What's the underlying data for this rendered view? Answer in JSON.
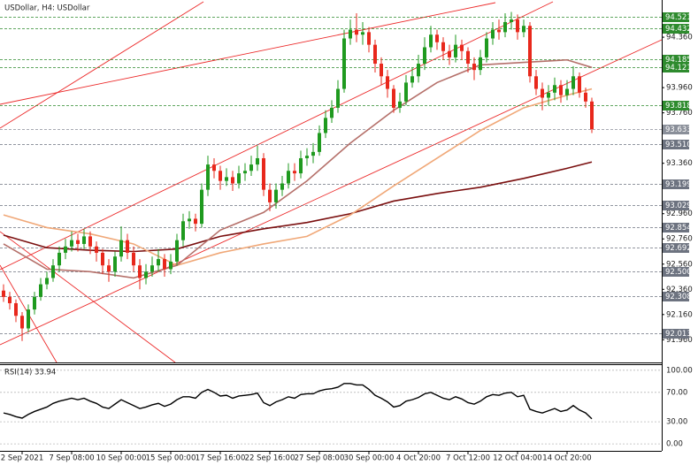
{
  "chart_data": [
    {
      "type": "candlestick",
      "title": "USDollar, H4:  USDollar",
      "categories": [
        null,
        null,
        null,
        "2 Sep 2021",
        null,
        null,
        null,
        null,
        null,
        null,
        null,
        "7 Sep 08:00",
        null,
        null,
        null,
        null,
        null,
        null,
        null,
        "10 Sep 00:00",
        null,
        null,
        null,
        null,
        null,
        null,
        null,
        "15 Sep 00:00",
        null,
        null,
        null,
        null,
        null,
        null,
        null,
        "17 Sep 16:00",
        null,
        null,
        null,
        null,
        null,
        null,
        null,
        "22 Sep 16:00",
        null,
        null,
        null,
        null,
        null,
        null,
        null,
        "27 Sep 08:00",
        null,
        null,
        null,
        null,
        null,
        null,
        null,
        "30 Sep 00:00",
        null,
        null,
        null,
        null,
        null,
        null,
        null,
        "4 Oct 20:00",
        null,
        null,
        null,
        null,
        null,
        null,
        null,
        "7 Oct 12:00",
        null,
        null,
        null,
        null,
        null,
        null,
        null,
        "12 Oct 04:00",
        null,
        null,
        null,
        null,
        null,
        null,
        null,
        "14 Oct 20:00",
        null,
        null,
        null,
        null
      ],
      "open": [
        92.35,
        92.3,
        92.25,
        92.15,
        92.05,
        92.2,
        92.3,
        92.4,
        92.45,
        92.55,
        92.65,
        92.7,
        92.75,
        92.72,
        92.78,
        92.7,
        92.65,
        92.55,
        92.5,
        92.62,
        92.75,
        92.65,
        92.55,
        92.45,
        92.5,
        92.55,
        92.6,
        92.52,
        92.58,
        92.75,
        92.9,
        92.92,
        92.88,
        93.15,
        93.35,
        93.3,
        93.22,
        93.25,
        93.2,
        93.28,
        93.3,
        93.35,
        93.4,
        93.15,
        93.05,
        93.15,
        93.2,
        93.3,
        93.28,
        93.4,
        93.42,
        93.45,
        93.6,
        93.72,
        93.8,
        93.95,
        94.35,
        94.42,
        94.38,
        94.4,
        94.3,
        94.15,
        94.05,
        93.95,
        93.8,
        93.85,
        94.0,
        94.05,
        94.15,
        94.28,
        94.38,
        94.32,
        94.25,
        94.2,
        94.3,
        94.25,
        94.15,
        94.1,
        94.2,
        94.35,
        94.42,
        94.4,
        94.48,
        94.5,
        94.4,
        94.45,
        94.05,
        93.95,
        93.88,
        93.92,
        93.98,
        93.9,
        93.95,
        94.05,
        93.92,
        93.85
      ],
      "high": [
        92.4,
        92.34,
        92.28,
        92.18,
        92.24,
        92.34,
        92.45,
        92.5,
        92.6,
        92.7,
        92.76,
        92.82,
        92.8,
        92.84,
        92.82,
        92.74,
        92.68,
        92.6,
        92.66,
        92.86,
        92.8,
        92.7,
        92.6,
        92.56,
        92.62,
        92.68,
        92.64,
        92.64,
        92.8,
        92.96,
        92.98,
        92.96,
        93.2,
        93.42,
        93.4,
        93.34,
        93.32,
        93.3,
        93.34,
        93.36,
        93.42,
        93.5,
        93.44,
        93.2,
        93.2,
        93.26,
        93.36,
        93.36,
        93.46,
        93.48,
        93.52,
        93.66,
        93.78,
        93.86,
        94.02,
        94.42,
        94.5,
        94.55,
        94.48,
        94.44,
        94.34,
        94.2,
        94.1,
        93.98,
        93.92,
        94.06,
        94.12,
        94.22,
        94.36,
        94.45,
        94.42,
        94.36,
        94.3,
        94.38,
        94.34,
        94.28,
        94.2,
        94.26,
        94.4,
        94.48,
        94.5,
        94.55,
        94.56,
        94.54,
        94.5,
        94.48,
        94.1,
        94.0,
        93.98,
        94.04,
        94.02,
        94.02,
        94.13,
        94.08,
        93.96,
        93.88
      ],
      "low": [
        92.26,
        92.2,
        92.1,
        91.95,
        92.02,
        92.16,
        92.27,
        92.36,
        92.42,
        92.5,
        92.6,
        92.66,
        92.66,
        92.68,
        92.64,
        92.58,
        92.48,
        92.42,
        92.46,
        92.58,
        92.6,
        92.5,
        92.36,
        92.4,
        92.46,
        92.5,
        92.46,
        92.48,
        92.55,
        92.7,
        92.84,
        92.82,
        92.85,
        93.1,
        93.24,
        93.15,
        93.18,
        93.14,
        93.16,
        93.22,
        93.26,
        93.3,
        93.1,
        92.98,
        93.0,
        93.1,
        93.16,
        93.22,
        93.24,
        93.34,
        93.36,
        93.42,
        93.56,
        93.68,
        93.76,
        93.92,
        94.3,
        94.32,
        94.3,
        94.24,
        94.08,
        93.98,
        93.88,
        93.76,
        93.76,
        93.82,
        93.96,
        94.0,
        94.1,
        94.24,
        94.26,
        94.18,
        94.14,
        94.16,
        94.18,
        94.08,
        94.02,
        94.06,
        94.16,
        94.3,
        94.34,
        94.36,
        94.42,
        94.34,
        94.36,
        94.0,
        93.9,
        93.78,
        93.82,
        93.86,
        93.84,
        93.86,
        93.9,
        93.88,
        93.8,
        93.6
      ],
      "close": [
        92.3,
        92.25,
        92.15,
        92.05,
        92.2,
        92.3,
        92.4,
        92.45,
        92.55,
        92.65,
        92.7,
        92.75,
        92.72,
        92.78,
        92.7,
        92.65,
        92.55,
        92.5,
        92.62,
        92.75,
        92.65,
        92.55,
        92.45,
        92.5,
        92.55,
        92.6,
        92.52,
        92.58,
        92.75,
        92.9,
        92.92,
        92.88,
        93.15,
        93.35,
        93.3,
        93.22,
        93.25,
        93.2,
        93.28,
        93.3,
        93.35,
        93.4,
        93.15,
        93.05,
        93.15,
        93.2,
        93.3,
        93.28,
        93.4,
        93.42,
        93.45,
        93.6,
        93.72,
        93.8,
        93.95,
        94.35,
        94.42,
        94.38,
        94.4,
        94.3,
        94.15,
        94.05,
        93.95,
        93.8,
        93.85,
        94.0,
        94.05,
        94.15,
        94.28,
        94.38,
        94.32,
        94.25,
        94.2,
        94.3,
        94.25,
        94.15,
        94.1,
        94.2,
        94.35,
        94.42,
        94.4,
        94.48,
        94.5,
        94.4,
        94.45,
        94.05,
        93.95,
        93.88,
        93.92,
        93.98,
        93.9,
        93.95,
        94.05,
        93.92,
        93.85,
        93.63
      ],
      "up_color": "#1f9a1f",
      "down_color": "#e8281c",
      "ylim": [
        91.78,
        94.62
      ],
      "yticks": [
        {
          "value": 94.36,
          "label": "94.360"
        },
        {
          "value": 93.96,
          "label": "93.960"
        },
        {
          "value": 93.76,
          "label": "93.760"
        },
        {
          "value": 93.36,
          "label": "93.360"
        },
        {
          "value": 92.96,
          "label": "92.960"
        },
        {
          "value": 92.76,
          "label": "92.760"
        },
        {
          "value": 92.56,
          "label": "92.560"
        },
        {
          "value": 92.36,
          "label": "92.360"
        },
        {
          "value": 92.16,
          "label": "92.160"
        },
        {
          "value": 91.96,
          "label": "91.960"
        }
      ],
      "levels": [
        {
          "value": 94.521,
          "label": "94.521",
          "color": "#2e8b2e"
        },
        {
          "value": 94.432,
          "label": "94.432",
          "color": "#2e8b2e"
        },
        {
          "value": 94.185,
          "label": "94.185",
          "color": "#2e8b2e"
        },
        {
          "value": 94.121,
          "label": "94.121",
          "color": "#2e8b2e"
        },
        {
          "value": 93.818,
          "label": "93.818",
          "color": "#2e8b2e"
        },
        {
          "value": 93.633,
          "label": "93.633",
          "color": "#8a8f99"
        },
        {
          "value": 93.51,
          "label": "93.510",
          "color": "#6d7380"
        },
        {
          "value": 93.199,
          "label": "93.199",
          "color": "#6d7380"
        },
        {
          "value": 93.029,
          "label": "93.029",
          "color": "#6d7380"
        },
        {
          "value": 92.854,
          "label": "92.854",
          "color": "#6d7380"
        },
        {
          "value": 92.692,
          "label": "92.692",
          "color": "#6d7380"
        },
        {
          "value": 92.5,
          "label": "92.500",
          "color": "#6d7380"
        },
        {
          "value": 92.308,
          "label": "92.308",
          "color": "#6d7380"
        },
        {
          "value": 92.013,
          "label": "92.013",
          "color": "#6d7380"
        }
      ],
      "overlays": [
        {
          "color": "#7a0f0f",
          "x": [
            0,
            7,
            14,
            21,
            28,
            35,
            42,
            49,
            56,
            63,
            70,
            77,
            84,
            91,
            95
          ],
          "values": [
            92.79,
            92.69,
            92.67,
            92.66,
            92.68,
            92.78,
            92.84,
            92.89,
            92.96,
            93.06,
            93.12,
            93.17,
            93.24,
            93.32,
            93.37
          ]
        },
        {
          "color": "#f0a878",
          "x": [
            0,
            7,
            14,
            21,
            28,
            35,
            42,
            49,
            56,
            63,
            70,
            77,
            84,
            91,
            95
          ],
          "values": [
            92.95,
            92.85,
            92.8,
            92.72,
            92.55,
            92.65,
            92.72,
            92.78,
            92.95,
            93.18,
            93.4,
            93.62,
            93.8,
            93.9,
            93.95
          ]
        },
        {
          "color": "#b5706a",
          "x": [
            0,
            7,
            14,
            21,
            28,
            35,
            42,
            49,
            56,
            63,
            70,
            77,
            84,
            91,
            95
          ],
          "values": [
            92.72,
            92.52,
            92.5,
            92.45,
            92.55,
            92.83,
            92.97,
            93.22,
            93.52,
            93.78,
            94.0,
            94.14,
            94.16,
            94.18,
            94.12
          ]
        }
      ]
    },
    {
      "type": "line",
      "title": "RSI(14) 33.94",
      "color": "#000000",
      "values": [
        42,
        40,
        37,
        35,
        40,
        44,
        47,
        50,
        55,
        58,
        60,
        62,
        60,
        62,
        58,
        55,
        50,
        48,
        54,
        60,
        56,
        52,
        48,
        50,
        53,
        55,
        51,
        54,
        60,
        64,
        64,
        62,
        70,
        74,
        70,
        65,
        66,
        62,
        65,
        66,
        67,
        69,
        56,
        52,
        57,
        60,
        64,
        62,
        67,
        68,
        68,
        72,
        74,
        75,
        77,
        82,
        82,
        80,
        80,
        74,
        66,
        62,
        57,
        50,
        52,
        58,
        60,
        63,
        68,
        70,
        66,
        62,
        60,
        64,
        61,
        56,
        54,
        58,
        64,
        67,
        66,
        69,
        70,
        64,
        66,
        47,
        44,
        42,
        45,
        48,
        44,
        46,
        52,
        46,
        42,
        34
      ],
      "ylim": [
        -9.5,
        107
      ],
      "yticks": [
        {
          "value": 100,
          "label": "100.00"
        },
        {
          "value": 70,
          "label": "70.00"
        },
        {
          "value": 30,
          "label": "30.00"
        },
        {
          "value": 0,
          "label": "0.00"
        }
      ]
    }
  ]
}
